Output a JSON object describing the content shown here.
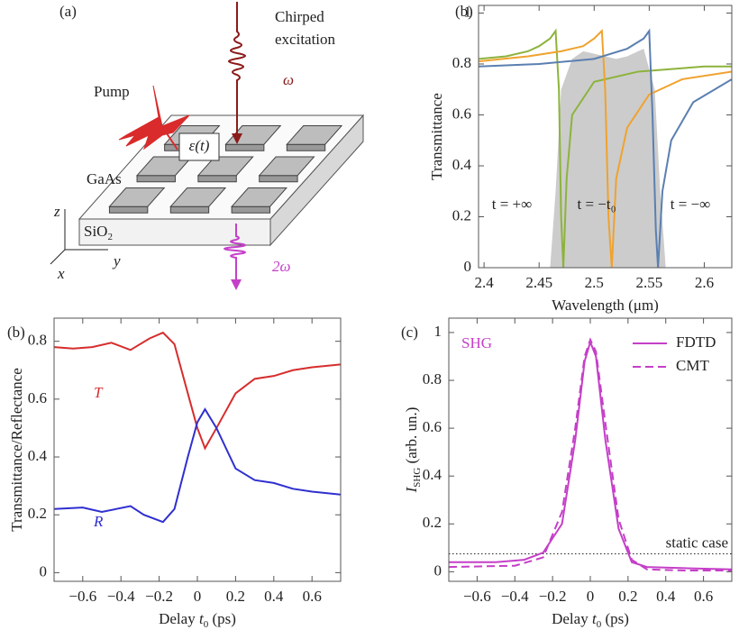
{
  "diagram": {
    "panel_label": "(a)",
    "excitation_1": "Chirped",
    "excitation_2": "excitation",
    "omega": "ω",
    "pump": "Pump",
    "permittivity": "ε(t)",
    "material": "GaAs",
    "substrate": "SiO",
    "substrate_sub": "2",
    "axis_z": "z",
    "axis_y": "y",
    "axis_x": "x",
    "second_harmonic": "2ω"
  },
  "chart_data": [
    {
      "type": "line",
      "panel_label": "(b)",
      "xlabel": "Wavelength (μm)",
      "ylabel": "Transmittance",
      "xlim": [
        2.395,
        2.625
      ],
      "ylim": [
        0,
        1.03
      ],
      "xticks": [
        2.4,
        2.45,
        2.5,
        2.55,
        2.6
      ],
      "yticks": [
        0,
        0.2,
        0.4,
        0.6,
        0.8,
        1
      ],
      "series": [
        {
          "style": "area",
          "color": "#cccccc",
          "x": [
            2.46,
            2.465,
            2.47,
            2.48,
            2.49,
            2.5,
            2.52,
            2.53,
            2.545,
            2.555,
            2.56,
            2.565
          ],
          "values": [
            0,
            0.3,
            0.7,
            0.82,
            0.85,
            0.84,
            0.82,
            0.83,
            0.86,
            0.7,
            0.3,
            0
          ]
        },
        {
          "color": "#8db33c",
          "x": [
            2.395,
            2.42,
            2.44,
            2.45,
            2.46,
            2.465,
            2.468,
            2.47,
            2.472,
            2.475,
            2.48,
            2.5,
            2.54,
            2.6,
            2.625
          ],
          "values": [
            0.82,
            0.83,
            0.85,
            0.87,
            0.9,
            0.93,
            0.7,
            0.2,
            0,
            0.35,
            0.6,
            0.73,
            0.77,
            0.79,
            0.79
          ]
        },
        {
          "color": "#f0a22e",
          "x": [
            2.395,
            2.44,
            2.47,
            2.49,
            2.5,
            2.507,
            2.51,
            2.513,
            2.516,
            2.52,
            2.53,
            2.55,
            2.58,
            2.625
          ],
          "values": [
            0.81,
            0.83,
            0.85,
            0.87,
            0.9,
            0.93,
            0.7,
            0.2,
            0,
            0.35,
            0.55,
            0.68,
            0.74,
            0.77
          ]
        },
        {
          "color": "#5b7fb0",
          "x": [
            2.395,
            2.45,
            2.5,
            2.53,
            2.545,
            2.55,
            2.553,
            2.556,
            2.558,
            2.562,
            2.57,
            2.59,
            2.625
          ],
          "values": [
            0.79,
            0.8,
            0.82,
            0.86,
            0.9,
            0.93,
            0.6,
            0.15,
            0,
            0.3,
            0.5,
            0.65,
            0.74
          ]
        }
      ],
      "annotations": [
        {
          "text": "t = +∞"
        },
        {
          "text": "t = −t₀"
        },
        {
          "text": "t = −∞"
        }
      ]
    },
    {
      "type": "line",
      "panel_label": "(b)",
      "xlabel": [
        "Delay ",
        "t",
        "0",
        " (ps)"
      ],
      "ylabel": "Transmittance/Reflectance",
      "xlim": [
        -0.75,
        0.75
      ],
      "ylim": [
        -0.03,
        0.88
      ],
      "xticks": [
        {
          "value": -0.6,
          "label": "−0.6"
        },
        {
          "value": -0.4,
          "label": "−0.4"
        },
        {
          "value": -0.2,
          "label": "−0.2"
        },
        0,
        0.2,
        0.4,
        0.6
      ],
      "yticks": [
        0,
        0.2,
        0.4,
        0.6,
        0.8
      ],
      "series": [
        {
          "color": "#d62d2d",
          "x": [
            -0.75,
            -0.65,
            -0.55,
            -0.45,
            -0.35,
            -0.25,
            -0.18,
            -0.12,
            -0.05,
            0,
            0.04,
            0.1,
            0.2,
            0.3,
            0.4,
            0.5,
            0.6,
            0.75
          ],
          "values": [
            0.78,
            0.775,
            0.78,
            0.795,
            0.77,
            0.81,
            0.83,
            0.79,
            0.62,
            0.5,
            0.43,
            0.5,
            0.62,
            0.67,
            0.68,
            0.7,
            0.71,
            0.72
          ]
        },
        {
          "color": "#2f2fd0",
          "x": [
            -0.75,
            -0.6,
            -0.5,
            -0.35,
            -0.28,
            -0.18,
            -0.12,
            -0.05,
            0,
            0.04,
            0.1,
            0.2,
            0.3,
            0.4,
            0.5,
            0.6,
            0.75
          ],
          "values": [
            0.22,
            0.225,
            0.21,
            0.23,
            0.2,
            0.175,
            0.22,
            0.4,
            0.52,
            0.565,
            0.5,
            0.36,
            0.32,
            0.31,
            0.29,
            0.28,
            0.27
          ]
        }
      ],
      "annotations": [
        {
          "text": "T",
          "color": "#d62d2d"
        },
        {
          "text": "R",
          "color": "#2f2fd0"
        }
      ]
    },
    {
      "type": "line",
      "panel_label": "(c)",
      "xlabel": [
        "Delay ",
        "t",
        "0",
        " (ps)"
      ],
      "ylabel": [
        "I",
        "SHG",
        " (arb. un.)"
      ],
      "xlim": [
        -0.75,
        0.75
      ],
      "ylim": [
        -0.04,
        1.06
      ],
      "xticks": [
        {
          "value": -0.6,
          "label": "−0.6"
        },
        {
          "value": -0.4,
          "label": "−0.4"
        },
        {
          "value": -0.2,
          "label": "−0.2"
        },
        0,
        0.2,
        0.4,
        0.6
      ],
      "yticks": [
        0,
        0.2,
        0.4,
        0.6,
        0.8,
        1
      ],
      "legend": "upper right",
      "series": [
        {
          "name": "FDTD",
          "color": "#c53fc8",
          "x": [
            -0.75,
            -0.5,
            -0.35,
            -0.25,
            -0.15,
            -0.08,
            -0.03,
            0,
            0.03,
            0.08,
            0.15,
            0.22,
            0.3,
            0.5,
            0.75
          ],
          "values": [
            0.04,
            0.04,
            0.05,
            0.08,
            0.2,
            0.55,
            0.88,
            0.96,
            0.9,
            0.55,
            0.18,
            0.04,
            0.02,
            0.015,
            0.01
          ]
        },
        {
          "name": "CMT",
          "style": "dashed",
          "color": "#c53fc8",
          "x": [
            -0.75,
            -0.4,
            -0.25,
            -0.15,
            -0.08,
            -0.03,
            0,
            0.03,
            0.08,
            0.15,
            0.22,
            0.3,
            0.5,
            0.75
          ],
          "values": [
            0.02,
            0.025,
            0.06,
            0.25,
            0.6,
            0.9,
            0.97,
            0.92,
            0.62,
            0.22,
            0.05,
            0.01,
            0.005,
            0.005
          ]
        }
      ],
      "reference_line": {
        "value": 0.075,
        "label": "static case"
      },
      "annotations": [
        {
          "text": "SHG",
          "color": "#c53fc8"
        }
      ]
    }
  ]
}
